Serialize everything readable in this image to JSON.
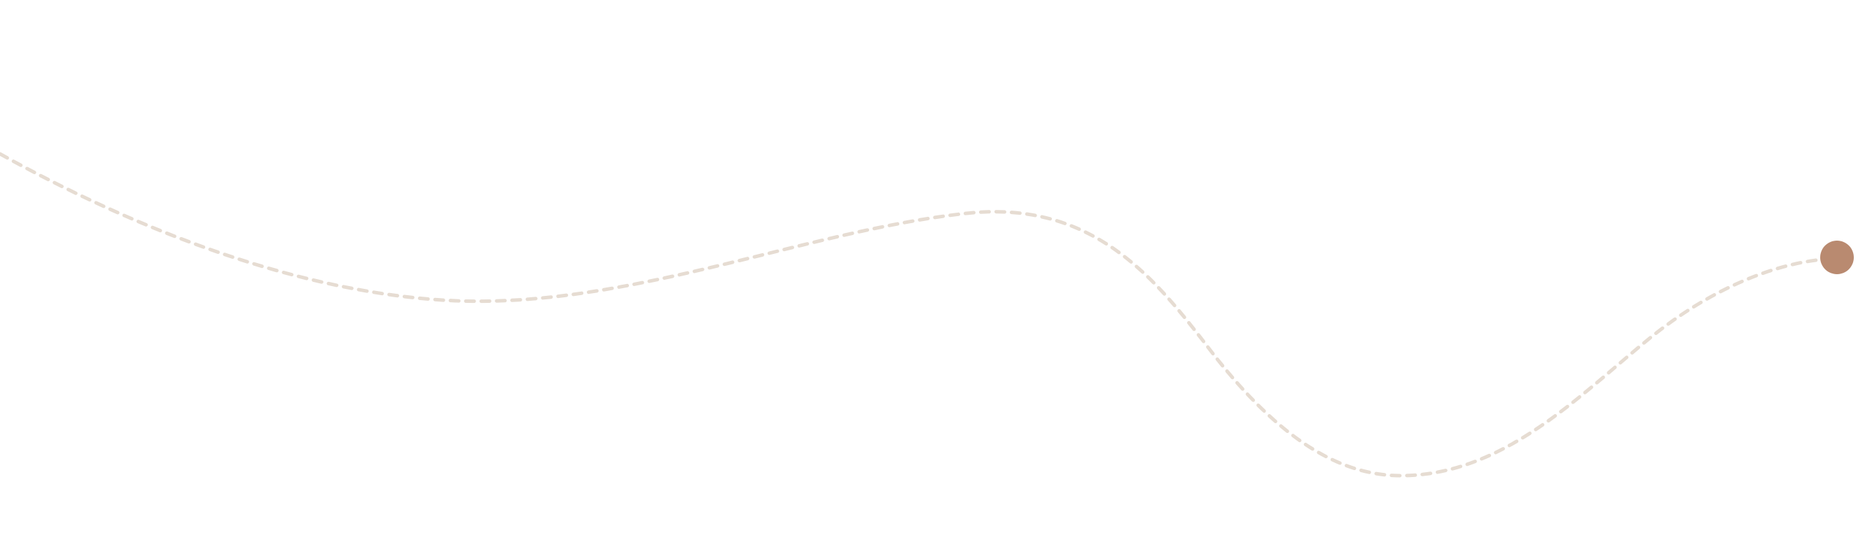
{
  "decoration": {
    "path_color": "#e6dcd2",
    "dot_color": "#b98a70",
    "dot_name": "progress-dot-marker"
  }
}
